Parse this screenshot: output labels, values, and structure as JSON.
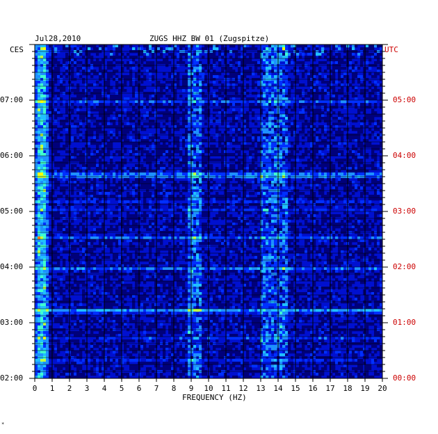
{
  "chart_data": {
    "type": "heatmap",
    "date": "Jul28,2010",
    "title": "ZUGS HHZ BW 01 (Zugspitze)",
    "xlabel": "FREQUENCY (HZ)",
    "xlim": [
      0,
      20
    ],
    "x_ticks": [
      "0",
      "1",
      "2",
      "3",
      "4",
      "5",
      "6",
      "7",
      "8",
      "9",
      "10",
      "11",
      "12",
      "13",
      "14",
      "15",
      "16",
      "17",
      "18",
      "19",
      "20"
    ],
    "left_timezone": "CES",
    "right_timezone": "UTC",
    "left_time_ticks": [
      "07:00",
      "06:00",
      "05:00",
      "04:00",
      "03:00",
      "02:00"
    ],
    "right_time_ticks": [
      "05:00",
      "04:00",
      "03:00",
      "02:00",
      "01:00",
      "00:00"
    ],
    "time_range_ces": [
      "02:00",
      "08:00"
    ],
    "colormap": [
      "#00007a",
      "#0000c8",
      "#0030ff",
      "#1e90ff",
      "#20c0ff",
      "#40ffd0",
      "#c0ff40",
      "#ffff00",
      "#ff8000"
    ],
    "energy_bands_hz": [
      [
        0.2,
        0.6
      ],
      [
        8.8,
        9.6
      ],
      [
        12.9,
        14.6
      ]
    ],
    "grid": true,
    "footnote": "*"
  }
}
